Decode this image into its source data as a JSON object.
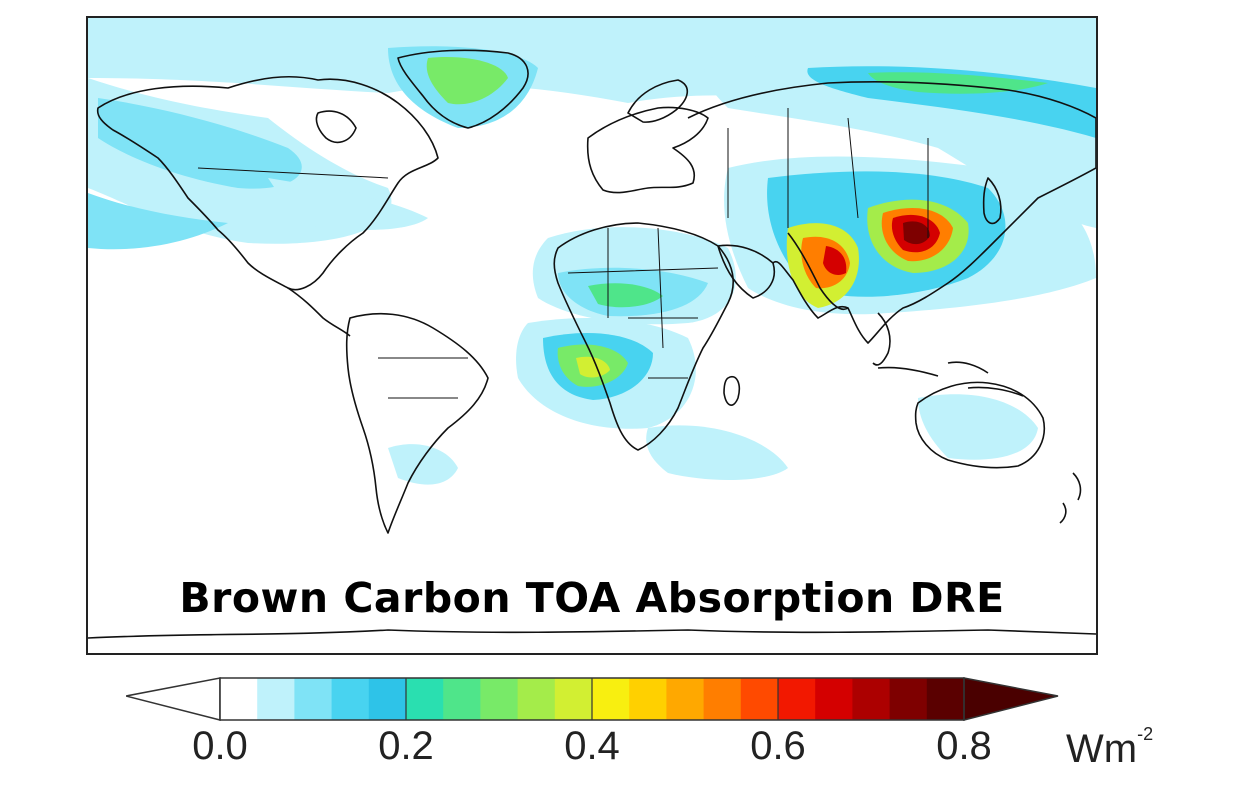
{
  "map": {
    "title": "Brown Carbon TOA Absorption DRE",
    "projection": "equirectangular world",
    "background_color": "#ffffff",
    "coastline_color": "#111111"
  },
  "colorbar": {
    "ticks": [
      "0.0",
      "0.2",
      "0.4",
      "0.6",
      "0.8"
    ],
    "unit_base": "Wm",
    "unit_exp": "-2",
    "range": [
      0.0,
      0.8
    ],
    "colors": [
      "#ffffff",
      "#bff2fb",
      "#7fe3f6",
      "#48d3f0",
      "#2ec3e8",
      "#2adfb0",
      "#4fe58a",
      "#78ea68",
      "#a4ec4a",
      "#d2ef32",
      "#f8ef10",
      "#ffd000",
      "#ffa800",
      "#ff7e00",
      "#ff4a00",
      "#f21800",
      "#d40000",
      "#ac0000",
      "#7e0000",
      "#5a0000"
    ],
    "extend_low_color": "#ffffff",
    "extend_high_color": "#4a0000"
  }
}
